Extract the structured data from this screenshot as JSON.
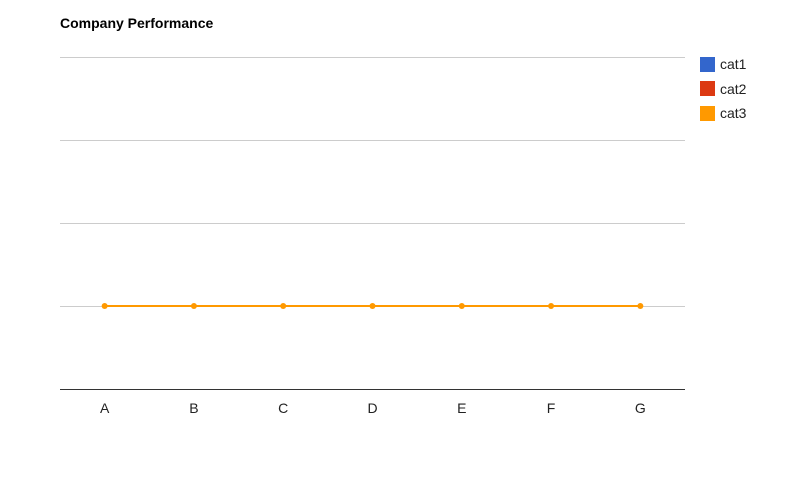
{
  "chart_data": {
    "type": "line",
    "title": "Company Performance",
    "categories": [
      "A",
      "B",
      "C",
      "D",
      "E",
      "F",
      "G"
    ],
    "series": [
      {
        "name": "cat1",
        "color": "#3366cc",
        "values": [
          null,
          null,
          null,
          null,
          null,
          null,
          null
        ]
      },
      {
        "name": "cat2",
        "color": "#dc3912",
        "values": [
          null,
          null,
          null,
          null,
          null,
          null,
          null
        ]
      },
      {
        "name": "cat3",
        "color": "#ff9900",
        "values": [
          1,
          1,
          1,
          1,
          1,
          1,
          1
        ]
      }
    ],
    "xlabel": "",
    "ylabel": "",
    "ylim": [
      0,
      4
    ],
    "grid": true,
    "legend_position": "right",
    "colors": {
      "gridline": "#cccccc",
      "baseline": "#333333",
      "text": "#222222"
    }
  }
}
